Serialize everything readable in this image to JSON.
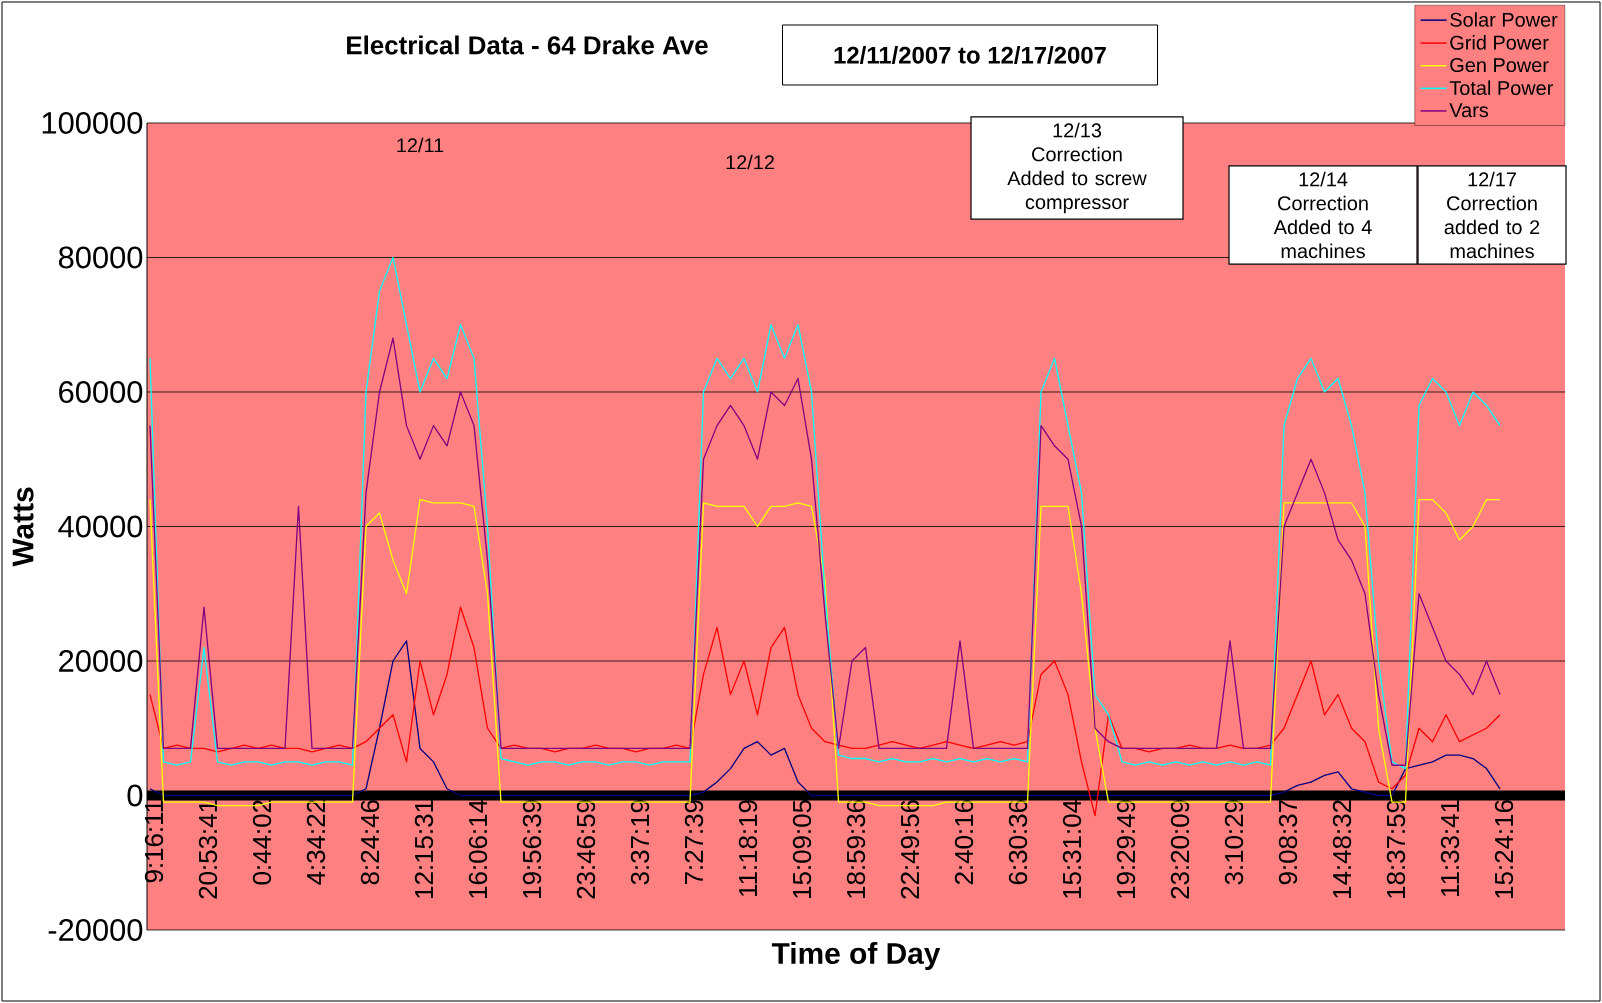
{
  "chart_data": {
    "type": "line",
    "title": "Electrical Data - 64 Drake Ave",
    "subtitle": "12/11/2007  to  12/17/2007",
    "xlabel": "Time of Day",
    "ylabel": "Watts",
    "categories": [
      "9:16:11",
      null,
      null,
      null,
      "20:53:41",
      null,
      null,
      null,
      "0:44:02",
      null,
      null,
      null,
      "4:34:22",
      null,
      null,
      null,
      "8:24:46",
      null,
      null,
      null,
      "12:15:31",
      null,
      null,
      null,
      "16:06:14",
      null,
      null,
      null,
      "19:56:39",
      null,
      null,
      null,
      "23:46:59",
      null,
      null,
      null,
      "3:37:19",
      null,
      null,
      null,
      "7:27:39",
      null,
      null,
      null,
      "11:18:19",
      null,
      null,
      null,
      "15:09:05",
      null,
      null,
      null,
      "18:59:36",
      null,
      null,
      null,
      "22:49:56",
      null,
      null,
      null,
      "2:40:16",
      null,
      null,
      null,
      "6:30:36",
      null,
      null,
      null,
      "15:31:04",
      null,
      null,
      null,
      "19:29:49",
      null,
      null,
      null,
      "23:20:09",
      null,
      null,
      null,
      "3:10:29",
      null,
      null,
      null,
      "9:08:37",
      null,
      null,
      null,
      "14:48:32",
      null,
      null,
      null,
      "18:37:59",
      null,
      null,
      null,
      "11:33:41",
      null,
      null,
      null,
      "15:24:16"
    ],
    "series": [
      {
        "name": "Solar Power",
        "color": "#000080",
        "values": [
          1000,
          0,
          0,
          0,
          0,
          0,
          0,
          0,
          0,
          0,
          0,
          0,
          0,
          0,
          0,
          0,
          1000,
          10000,
          20000,
          23000,
          7000,
          5000,
          1000,
          0,
          0,
          0,
          0,
          0,
          0,
          0,
          0,
          0,
          0,
          0,
          0,
          0,
          0,
          0,
          0,
          0,
          0,
          500,
          2000,
          4000,
          7000,
          8000,
          6000,
          7000,
          2000,
          0,
          0,
          0,
          0,
          0,
          0,
          0,
          0,
          0,
          0,
          0,
          0,
          0,
          0,
          0,
          0,
          0,
          0,
          0,
          0,
          0,
          0,
          0,
          0,
          0,
          0,
          0,
          0,
          0,
          0,
          0,
          0,
          0,
          0,
          0,
          500,
          1500,
          2000,
          3000,
          3500,
          1000,
          500,
          0,
          0,
          4000,
          4500,
          5000,
          6000,
          6000,
          5500,
          4000,
          1000
        ]
      },
      {
        "name": "Grid Power",
        "color": "#ff0000",
        "values": [
          15000,
          7000,
          7500,
          7000,
          7000,
          6500,
          7000,
          7500,
          7000,
          7500,
          7000,
          7000,
          6500,
          7000,
          7500,
          7000,
          8000,
          10000,
          12000,
          5000,
          20000,
          12000,
          18000,
          28000,
          22000,
          10000,
          7000,
          7500,
          7000,
          7000,
          6500,
          7000,
          7000,
          7500,
          7000,
          7000,
          6500,
          7000,
          7000,
          7500,
          7000,
          18000,
          25000,
          15000,
          20000,
          12000,
          22000,
          25000,
          15000,
          10000,
          8000,
          7500,
          7000,
          7000,
          7500,
          8000,
          7500,
          7000,
          7500,
          8000,
          7500,
          7000,
          7500,
          8000,
          7500,
          8000,
          18000,
          20000,
          15000,
          5000,
          -3000,
          12000,
          7000,
          7000,
          6500,
          7000,
          7000,
          7500,
          7000,
          7000,
          7500,
          7000,
          7000,
          7500,
          10000,
          15000,
          20000,
          12000,
          15000,
          10000,
          8000,
          2000,
          1000,
          3000,
          10000,
          8000,
          12000,
          8000,
          9000,
          10000,
          12000
        ]
      },
      {
        "name": "Gen Power",
        "color": "#ffff00",
        "values": [
          44000,
          -1000,
          -1000,
          -1000,
          -1000,
          -1500,
          -1500,
          -1500,
          -1500,
          -1000,
          -1000,
          -1000,
          -1000,
          -1000,
          -1000,
          -1000,
          40000,
          42000,
          35000,
          30000,
          44000,
          43500,
          43500,
          43500,
          43000,
          30000,
          -1000,
          -1000,
          -1000,
          -1000,
          -1000,
          -1000,
          -1000,
          -1000,
          -1000,
          -1000,
          -1000,
          -1000,
          -1000,
          -1000,
          -1000,
          43500,
          43000,
          43000,
          43000,
          40000,
          43000,
          43000,
          43500,
          43000,
          32000,
          -1000,
          -1000,
          -1000,
          -1500,
          -1500,
          -1500,
          -1500,
          -1500,
          -1000,
          -1000,
          -1000,
          -1000,
          -1000,
          -1000,
          -1000,
          43000,
          43000,
          43000,
          30000,
          10000,
          -1000,
          -1000,
          -1000,
          -1000,
          -1000,
          -1000,
          -1000,
          -1000,
          -1000,
          -1000,
          -1000,
          -1000,
          -1000,
          43500,
          43500,
          43500,
          43500,
          43500,
          43500,
          40000,
          10000,
          -1000,
          -1000,
          44000,
          44000,
          42000,
          38000,
          40000,
          44000,
          44000
        ]
      },
      {
        "name": "Total Power",
        "color": "#00ffff",
        "values": [
          65000,
          5000,
          4500,
          5000,
          22000,
          5000,
          4500,
          5000,
          5000,
          4500,
          5000,
          5000,
          4500,
          5000,
          5000,
          4500,
          60000,
          75000,
          80000,
          70000,
          60000,
          65000,
          62000,
          70000,
          65000,
          40000,
          5500,
          5000,
          4500,
          5000,
          5000,
          4500,
          5000,
          5000,
          4500,
          5000,
          5000,
          4500,
          5000,
          5000,
          5000,
          60000,
          65000,
          62000,
          65000,
          60000,
          70000,
          65000,
          70000,
          60000,
          30000,
          6000,
          5500,
          5500,
          5000,
          5500,
          5000,
          5000,
          5500,
          5000,
          5500,
          5000,
          5500,
          5000,
          5500,
          5000,
          60000,
          65000,
          55000,
          45000,
          15000,
          12000,
          5000,
          4500,
          5000,
          4500,
          5000,
          4500,
          5000,
          4500,
          5000,
          4500,
          5000,
          4500,
          55000,
          62000,
          65000,
          60000,
          62000,
          55000,
          45000,
          20000,
          5000,
          4000,
          58000,
          62000,
          60000,
          55000,
          60000,
          58000,
          55000
        ]
      },
      {
        "name": "Vars",
        "color": "#800080",
        "values": [
          55000,
          7000,
          7000,
          7000,
          28000,
          7000,
          7000,
          7000,
          7000,
          7000,
          7000,
          43000,
          7000,
          7000,
          7000,
          7000,
          45000,
          60000,
          68000,
          55000,
          50000,
          55000,
          52000,
          60000,
          55000,
          35000,
          7000,
          7000,
          7000,
          7000,
          7000,
          7000,
          7000,
          7000,
          7000,
          7000,
          7000,
          7000,
          7000,
          7000,
          7000,
          50000,
          55000,
          58000,
          55000,
          50000,
          60000,
          58000,
          62000,
          50000,
          27000,
          7000,
          20000,
          22000,
          7000,
          7000,
          7000,
          7000,
          7000,
          7000,
          23000,
          7000,
          7000,
          7000,
          7000,
          7000,
          55000,
          52000,
          50000,
          40000,
          10000,
          8000,
          7000,
          7000,
          7000,
          7000,
          7000,
          7000,
          7000,
          7000,
          23000,
          7000,
          7000,
          7000,
          40000,
          45000,
          50000,
          45000,
          38000,
          35000,
          30000,
          15000,
          4500,
          4500,
          30000,
          25000,
          20000,
          18000,
          15000,
          20000,
          15000
        ]
      }
    ],
    "ylim": [
      -20000,
      100000
    ],
    "yticks": [
      -20000,
      0,
      20000,
      40000,
      60000,
      80000,
      100000
    ],
    "grid": "y",
    "legend": "top right",
    "annotations": [
      "12/11",
      "12/12",
      "12/13 Correction Added to screw compressor",
      "12/14 Correction Added to 4 machines",
      "12/17 Correction added to 2 machines"
    ]
  }
}
